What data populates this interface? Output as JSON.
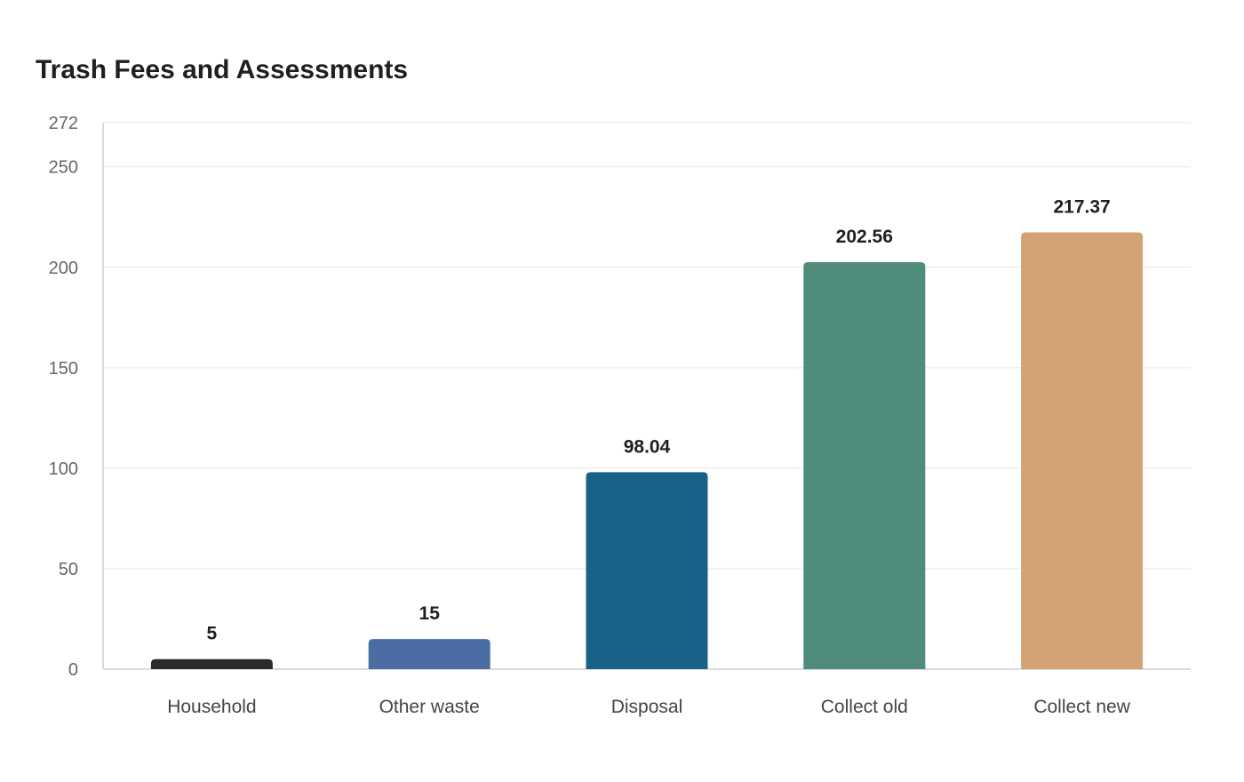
{
  "chart_data": {
    "type": "bar",
    "title": "Trash Fees and Assessments",
    "xlabel": "",
    "ylabel": "",
    "categories": [
      "Household",
      "Other waste",
      "Disposal",
      "Collect old",
      "Collect new"
    ],
    "values": [
      5,
      15,
      98.04,
      202.56,
      217.37
    ],
    "value_labels": [
      "5",
      "15",
      "98.04",
      "202.56",
      "217.37"
    ],
    "colors": [
      "#2b2b2b",
      "#4a6ea4",
      "#186187",
      "#4f8c7b",
      "#d3a373"
    ],
    "ylim": [
      0,
      272
    ],
    "yticks": [
      0,
      50,
      100,
      150,
      200,
      250,
      272
    ],
    "grid": true,
    "legend": "none"
  }
}
